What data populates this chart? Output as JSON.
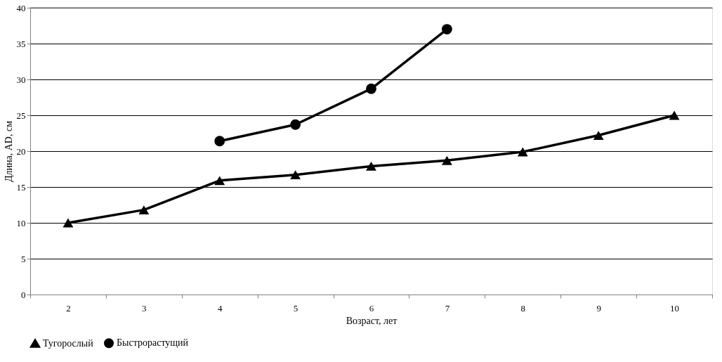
{
  "chart_data": {
    "type": "line",
    "xlabel": "Возраст, лет",
    "ylabel": "Длина, AD, см",
    "categories": [
      "2",
      "3",
      "4",
      "5",
      "6",
      "7",
      "8",
      "9",
      "10"
    ],
    "series": [
      {
        "name": "Тугорослый",
        "color": "#000000",
        "marker": "triangle",
        "values": [
          10.0,
          11.8,
          15.9,
          16.7,
          17.9,
          18.7,
          19.9,
          22.2,
          25.0
        ]
      },
      {
        "name": "Быстрорастущий",
        "color": "#000000",
        "marker": "circle",
        "values": [
          null,
          null,
          21.4,
          23.7,
          28.7,
          37.0,
          null,
          null,
          null
        ]
      }
    ],
    "ylim": [
      0,
      40
    ],
    "yticks": [
      0,
      5,
      10,
      15,
      20,
      25,
      30,
      35,
      40
    ],
    "grid": "y",
    "legend": "bottom",
    "line_style": "solid"
  }
}
